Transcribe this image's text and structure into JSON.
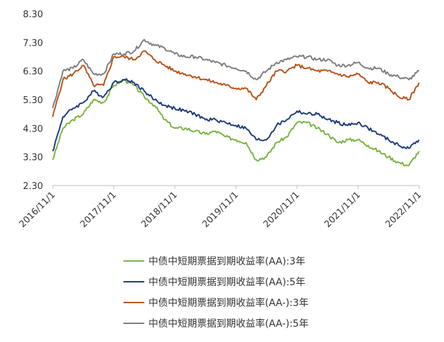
{
  "colors": {
    "series1": "#7cb342",
    "series2": "#1f3d7a",
    "series3": "#b8541a",
    "series4": "#7f7f7f",
    "axis": "#bfbfbf",
    "text": "#333333"
  },
  "chart_data": {
    "type": "line",
    "title": "",
    "xlabel": "",
    "ylabel": "",
    "ylim": [
      2.3,
      8.3
    ],
    "yticks": [
      "8.30",
      "7.30",
      "6.30",
      "5.30",
      "4.30",
      "3.30",
      "2.30"
    ],
    "yticks_values": [
      8.3,
      7.3,
      6.3,
      5.3,
      4.3,
      3.3,
      2.3
    ],
    "xticks": [
      "2016/11/1",
      "2017/11/1",
      "2018/11/1",
      "2019/11/1",
      "2020/11/1",
      "2021/11/1",
      "2022/11/1"
    ],
    "x": [
      "2016/11",
      "2017/01",
      "2017/03",
      "2017/05",
      "2017/07",
      "2017/09",
      "2017/11",
      "2018/01",
      "2018/03",
      "2018/05",
      "2018/07",
      "2018/09",
      "2018/11",
      "2019/01",
      "2019/03",
      "2019/05",
      "2019/07",
      "2019/09",
      "2019/11",
      "2020/01",
      "2020/03",
      "2020/05",
      "2020/07",
      "2020/09",
      "2020/11",
      "2021/01",
      "2021/03",
      "2021/05",
      "2021/07",
      "2021/09",
      "2021/11",
      "2022/01",
      "2022/03",
      "2022/05",
      "2022/07",
      "2022/09",
      "2022/11"
    ],
    "legend_position": "bottom",
    "grid": false,
    "series": [
      {
        "name": "中债中短期票据到期收益率(AA):3年",
        "values": [
          3.2,
          4.3,
          4.6,
          4.8,
          5.3,
          5.2,
          5.8,
          6.0,
          5.8,
          5.4,
          5.1,
          4.6,
          4.3,
          4.3,
          4.2,
          4.1,
          4.2,
          4.0,
          3.9,
          3.8,
          3.2,
          3.3,
          3.8,
          4.0,
          4.5,
          4.5,
          4.3,
          4.1,
          3.8,
          3.9,
          3.9,
          3.7,
          3.5,
          3.3,
          3.1,
          3.0,
          3.5
        ]
      },
      {
        "name": "中债中短期票据到期收益率(AA):5年",
        "values": [
          3.5,
          4.7,
          5.0,
          5.2,
          5.6,
          5.4,
          5.9,
          6.0,
          5.9,
          5.6,
          5.3,
          5.1,
          5.0,
          4.9,
          4.8,
          4.6,
          4.6,
          4.5,
          4.4,
          4.3,
          3.9,
          3.9,
          4.4,
          4.6,
          4.9,
          4.8,
          4.8,
          4.6,
          4.5,
          4.4,
          4.5,
          4.3,
          4.1,
          3.9,
          3.7,
          3.6,
          3.9
        ]
      },
      {
        "name": "中债中短期票据到期收益率(AA-):3年",
        "values": [
          4.7,
          6.0,
          6.2,
          6.5,
          5.8,
          5.8,
          6.8,
          6.8,
          6.7,
          7.0,
          6.7,
          6.5,
          6.3,
          6.2,
          6.1,
          6.0,
          5.9,
          5.8,
          5.7,
          5.7,
          5.3,
          5.8,
          6.3,
          6.3,
          6.5,
          6.4,
          6.3,
          6.3,
          6.2,
          6.1,
          6.2,
          5.9,
          5.9,
          5.7,
          5.4,
          5.3,
          5.9
        ]
      },
      {
        "name": "中债中短期票据到期收益率(AA-):5年",
        "values": [
          5.0,
          6.3,
          6.4,
          6.7,
          6.2,
          6.2,
          6.9,
          6.9,
          7.0,
          7.4,
          7.2,
          7.1,
          6.9,
          6.8,
          6.8,
          6.7,
          6.6,
          6.5,
          6.4,
          6.3,
          6.0,
          6.3,
          6.6,
          6.7,
          6.8,
          6.8,
          6.7,
          6.7,
          6.5,
          6.5,
          6.6,
          6.4,
          6.4,
          6.2,
          6.1,
          6.0,
          6.3
        ]
      }
    ]
  }
}
